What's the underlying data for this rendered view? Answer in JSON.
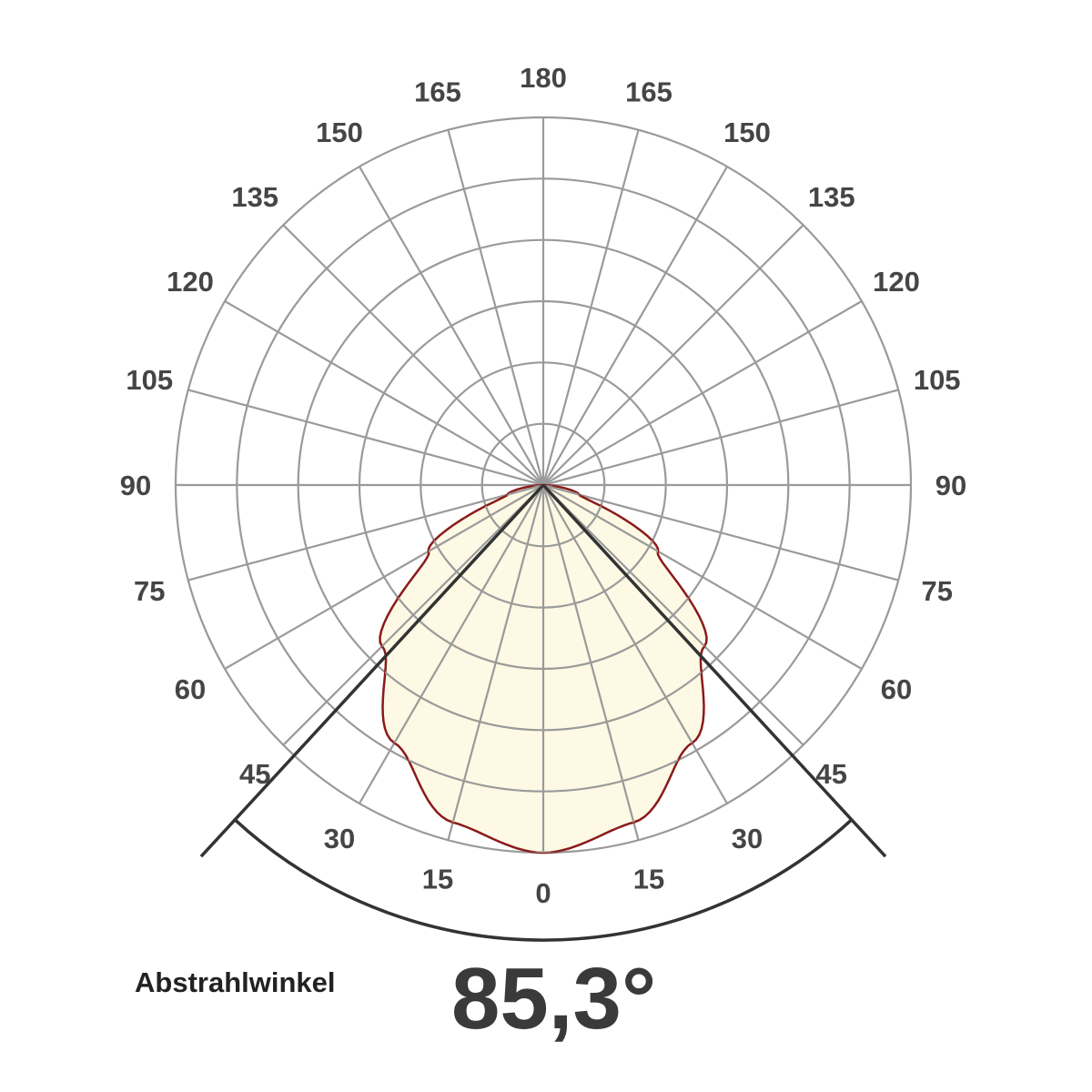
{
  "chart_data": {
    "type": "polar",
    "angle_ticks_left": [
      "0",
      "15",
      "30",
      "45",
      "60",
      "75",
      "90",
      "105",
      "120",
      "135",
      "150",
      "165",
      "180"
    ],
    "angle_ticks_right": [
      "15",
      "30",
      "45",
      "60",
      "75",
      "90",
      "105",
      "120",
      "135",
      "150",
      "165"
    ],
    "angle_step_deg": 15,
    "radial_rings": 6,
    "grid": true,
    "series": [
      {
        "angles_deg": [
          0,
          15,
          30,
          45,
          60,
          75,
          90
        ],
        "relative_intensity": [
          1.0,
          0.95,
          0.81,
          0.62,
          0.36,
          0.1,
          0.0
        ]
      }
    ],
    "beam_angle_deg": 85.3,
    "colors": {
      "grid": "#9a9a9a",
      "curve": "#8b1a1a",
      "fill": "#fdf9e4",
      "beam_lines": "#333333"
    }
  },
  "caption": {
    "label": "Abstrahlwinkel",
    "value": "85,3°"
  }
}
